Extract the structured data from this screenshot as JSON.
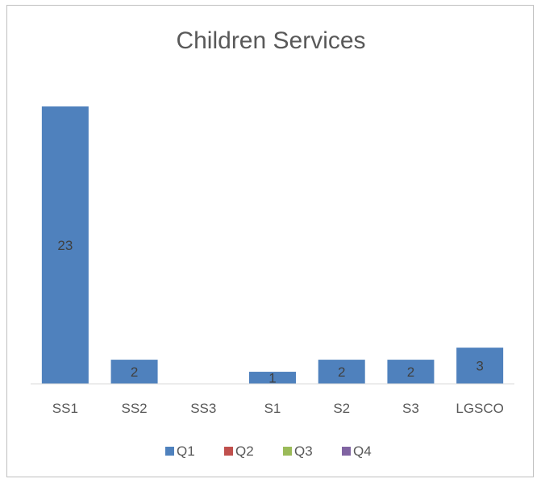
{
  "chart_data": {
    "type": "bar",
    "title": "Children Services",
    "categories": [
      "SS1",
      "SS2",
      "SS3",
      "S1",
      "S2",
      "S3",
      "LGSCO"
    ],
    "series": [
      {
        "name": "Q1",
        "color": "#4f81bd",
        "values": [
          23,
          2,
          0,
          1,
          2,
          2,
          3
        ]
      },
      {
        "name": "Q2",
        "color": "#c0504d",
        "values": [
          null,
          null,
          null,
          null,
          null,
          null,
          null
        ]
      },
      {
        "name": "Q3",
        "color": "#9bbb59",
        "values": [
          null,
          null,
          null,
          null,
          null,
          null,
          null
        ]
      },
      {
        "name": "Q4",
        "color": "#8064a2",
        "values": [
          null,
          null,
          null,
          null,
          null,
          null,
          null
        ]
      }
    ],
    "data_labels": [
      "23",
      "2",
      "",
      "1",
      "2",
      "2",
      "3"
    ],
    "ylim": [
      0,
      23
    ],
    "grid": false,
    "legend_position": "bottom"
  }
}
